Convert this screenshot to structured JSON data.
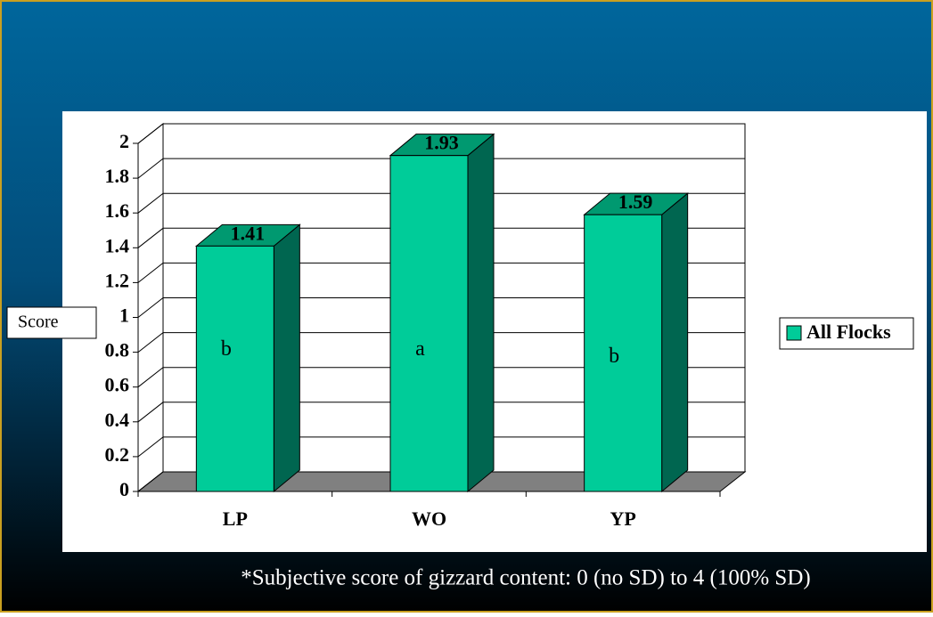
{
  "chart_data": {
    "type": "bar3d",
    "categories": [
      "LP",
      "WO",
      "YP"
    ],
    "series": [
      {
        "name": "All Flocks",
        "color": "#00cc99",
        "values": [
          1.41,
          1.93,
          1.59
        ]
      }
    ],
    "letters": [
      "b",
      "a",
      "b"
    ],
    "y_axis_label": "Score",
    "ylim": [
      0,
      2
    ],
    "yticks": [
      0,
      0.2,
      0.4,
      0.6,
      0.8,
      1,
      1.2,
      1.4,
      1.6,
      1.8,
      2
    ],
    "grid": true,
    "legend": "right",
    "footnote": "*Subjective score of gizzard content: 0 (no SD) to 4 (100% SD)"
  }
}
